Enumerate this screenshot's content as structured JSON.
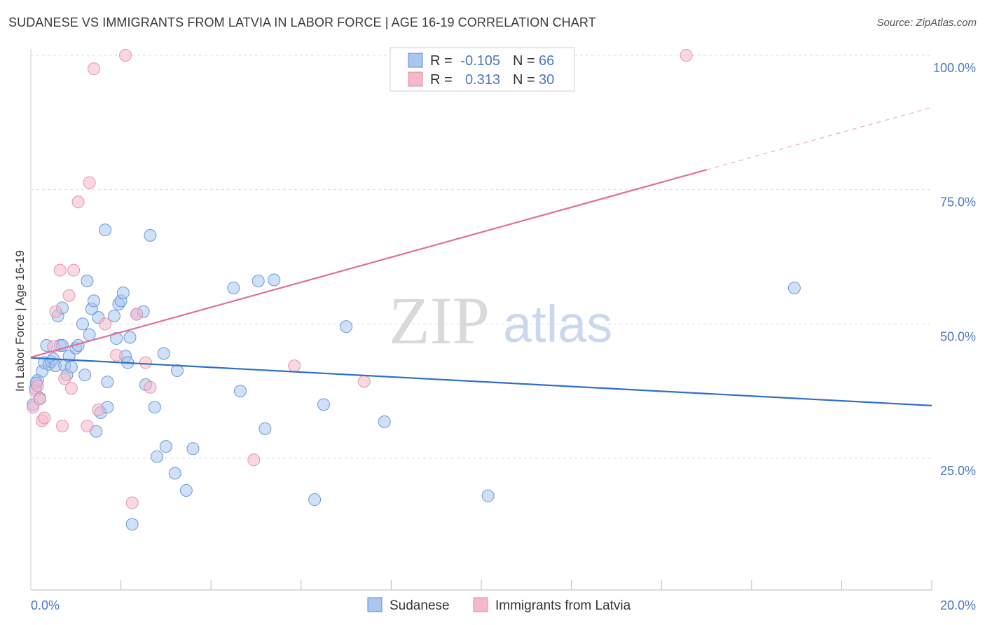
{
  "header": {
    "title": "SUDANESE VS IMMIGRANTS FROM LATVIA IN LABOR FORCE | AGE 16-19 CORRELATION CHART",
    "source": "Source: ZipAtlas.com"
  },
  "watermark": {
    "zip": "ZIP",
    "atlas": "atlas"
  },
  "legend": {
    "r_label": "R =",
    "n_label": "N =",
    "rows": [
      {
        "series": "Sudanese",
        "r": "-0.105",
        "n": "66"
      },
      {
        "series": "Immigrants from Latvia",
        "r": "0.313",
        "n": "30"
      }
    ]
  },
  "colors": {
    "blue_fill": "#a9c6ef",
    "blue_stroke": "#5b8fd6",
    "blue_line": "#2f6fcc",
    "pink_fill": "#f5b8cb",
    "pink_stroke": "#e68aa6",
    "pink_line": "#e0709a",
    "tick_text": "#4a78c4",
    "grid": "#dddddd"
  },
  "chart_data": {
    "type": "scatter",
    "title": "SUDANESE VS IMMIGRANTS FROM LATVIA IN LABOR FORCE | AGE 16-19 CORRELATION CHART",
    "ylabel": "In Labor Force | Age 16-19",
    "xlim": [
      0,
      20
    ],
    "ylim": [
      0,
      104
    ],
    "x_tick_labels": [
      {
        "value": 0,
        "label": "0.0%"
      },
      {
        "value": 20,
        "label": "20.0%"
      }
    ],
    "y_tick_labels": [
      {
        "value": 100,
        "label": "100.0%"
      },
      {
        "value": 75,
        "label": "75.0%"
      },
      {
        "value": 50,
        "label": "50.0%"
      },
      {
        "value": 25,
        "label": "25.0%"
      }
    ],
    "x_minor_ticks": [
      2,
      4,
      6,
      8,
      10,
      12,
      14,
      16,
      18,
      20
    ],
    "grid": true,
    "legend_position": "top-center",
    "series": [
      {
        "name": "Sudanese",
        "color": "#5b8fd6",
        "trend": {
          "x": [
            0,
            20
          ],
          "y": [
            43.7,
            34.8
          ],
          "dashed_from": null
        },
        "points": [
          [
            0.05,
            35.0
          ],
          [
            0.1,
            38.0
          ],
          [
            0.15,
            39.5
          ],
          [
            0.2,
            36.2
          ],
          [
            0.25,
            41.2
          ],
          [
            0.3,
            42.8
          ],
          [
            0.35,
            46.0
          ],
          [
            0.4,
            42.5
          ],
          [
            0.45,
            43.0
          ],
          [
            0.5,
            43.5
          ],
          [
            0.55,
            42.2
          ],
          [
            0.6,
            51.5
          ],
          [
            0.65,
            46.0
          ],
          [
            0.7,
            53.0
          ],
          [
            0.7,
            46.0
          ],
          [
            0.75,
            42.3
          ],
          [
            0.8,
            40.5
          ],
          [
            0.85,
            44.0
          ],
          [
            0.9,
            42.0
          ],
          [
            1.0,
            45.5
          ],
          [
            1.05,
            46.0
          ],
          [
            1.15,
            50.0
          ],
          [
            1.2,
            40.5
          ],
          [
            1.25,
            58.0
          ],
          [
            1.3,
            48.0
          ],
          [
            1.35,
            52.8
          ],
          [
            1.4,
            54.3
          ],
          [
            1.45,
            30.0
          ],
          [
            1.5,
            51.2
          ],
          [
            1.55,
            33.5
          ],
          [
            1.65,
            67.5
          ],
          [
            1.7,
            34.5
          ],
          [
            1.7,
            39.2
          ],
          [
            1.85,
            51.5
          ],
          [
            1.9,
            47.3
          ],
          [
            1.95,
            53.7
          ],
          [
            2.0,
            54.3
          ],
          [
            2.05,
            55.8
          ],
          [
            2.1,
            44.0
          ],
          [
            2.15,
            42.8
          ],
          [
            2.2,
            47.5
          ],
          [
            2.25,
            12.7
          ],
          [
            2.35,
            51.8
          ],
          [
            2.5,
            52.3
          ],
          [
            2.55,
            38.7
          ],
          [
            2.65,
            66.5
          ],
          [
            2.75,
            34.5
          ],
          [
            2.8,
            25.3
          ],
          [
            2.95,
            44.5
          ],
          [
            3.0,
            27.2
          ],
          [
            3.2,
            22.2
          ],
          [
            3.25,
            41.3
          ],
          [
            3.45,
            19.0
          ],
          [
            3.6,
            26.8
          ],
          [
            4.5,
            56.7
          ],
          [
            4.65,
            37.5
          ],
          [
            5.05,
            58.0
          ],
          [
            5.2,
            30.5
          ],
          [
            5.4,
            58.2
          ],
          [
            6.3,
            17.3
          ],
          [
            6.5,
            35.0
          ],
          [
            7.0,
            49.5
          ],
          [
            7.85,
            31.8
          ],
          [
            10.15,
            18.0
          ],
          [
            16.95,
            56.7
          ],
          [
            0.12,
            39.0
          ]
        ]
      },
      {
        "name": "Immigrants from Latvia",
        "color": "#e68aa6",
        "trend": {
          "x": [
            0,
            15
          ],
          "y": [
            43.8,
            78.7
          ],
          "dashed_from": 15,
          "dashed_to": [
            20,
            90.3
          ]
        },
        "points": [
          [
            0.05,
            34.5
          ],
          [
            0.1,
            37.5
          ],
          [
            0.15,
            38.5
          ],
          [
            0.25,
            32.0
          ],
          [
            0.3,
            32.5
          ],
          [
            0.5,
            45.8
          ],
          [
            0.55,
            52.3
          ],
          [
            0.65,
            60.0
          ],
          [
            0.7,
            31.0
          ],
          [
            0.75,
            39.8
          ],
          [
            0.85,
            55.3
          ],
          [
            0.9,
            38.0
          ],
          [
            0.95,
            60.0
          ],
          [
            1.05,
            72.7
          ],
          [
            1.25,
            31.0
          ],
          [
            1.3,
            76.3
          ],
          [
            1.4,
            97.5
          ],
          [
            1.5,
            34.0
          ],
          [
            1.65,
            50.0
          ],
          [
            1.9,
            44.2
          ],
          [
            2.1,
            100.0
          ],
          [
            2.25,
            16.7
          ],
          [
            2.35,
            51.8
          ],
          [
            2.55,
            42.8
          ],
          [
            2.65,
            38.2
          ],
          [
            4.95,
            24.7
          ],
          [
            5.85,
            42.2
          ],
          [
            7.4,
            39.3
          ],
          [
            14.55,
            100.0
          ],
          [
            0.2,
            36.0
          ]
        ]
      }
    ]
  },
  "bottom_legend": {
    "items": [
      "Sudanese",
      "Immigrants from Latvia"
    ]
  }
}
